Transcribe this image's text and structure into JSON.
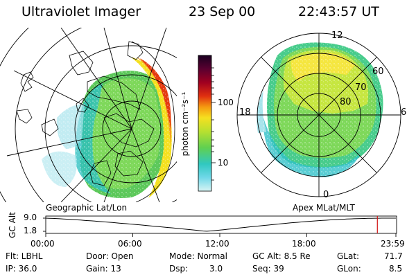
{
  "header": {
    "instrument": "Ultraviolet Imager",
    "date": "23 Sep 00",
    "time": "22:43:57 UT"
  },
  "colorbar": {
    "unit_label": "photon cm⁻²s⁻¹",
    "tick_labels": [
      "100",
      "10"
    ],
    "colors": [
      "#1a0020",
      "#5a0030",
      "#a00020",
      "#e03010",
      "#f59a10",
      "#f5e020",
      "#b8e030",
      "#60d050",
      "#30c8c0",
      "#70d8e8",
      "#d8f4f4"
    ]
  },
  "left_map": {
    "caption": "Geographic Lat/Lon",
    "aurora_colors": [
      "#e53a10",
      "#f5a020",
      "#f5e020",
      "#9ad830",
      "#5cc85a",
      "#30c0c0"
    ]
  },
  "right_map": {
    "caption": "Apex MLat/MLT",
    "lat_labels": [
      "60",
      "70",
      "80"
    ],
    "mlt_labels": [
      "12",
      "18",
      "6",
      "0"
    ],
    "aurora_colors": [
      "#f5e640",
      "#c6e640",
      "#7ed85a",
      "#48cc8c",
      "#30c0c8",
      "#a8e4ec"
    ]
  },
  "altitude_plot": {
    "ylabel": "GC Alt",
    "yticks": [
      "9.0",
      "1.8"
    ],
    "xticks": [
      "00:00",
      "06:00",
      "12:00",
      "18:00",
      "23:59"
    ],
    "marker_time_hours": 22.73,
    "marker_color": "#d01010",
    "curve_color": "#000000"
  },
  "info": {
    "flt": "Flt: LBHL",
    "ip": "IP: 36.0",
    "door": "Door: Open",
    "gain": "Gain: 13",
    "mode": "Mode: Normal",
    "dsp_label": "Dsp:",
    "dsp_value": "3.0",
    "gc_alt": "GC Alt: 8.5 Re",
    "seq": "Seq: 39",
    "glat_label": "GLat:",
    "glat_value": "71.7",
    "glon_label": "GLon:",
    "glon_value": "8.5"
  }
}
